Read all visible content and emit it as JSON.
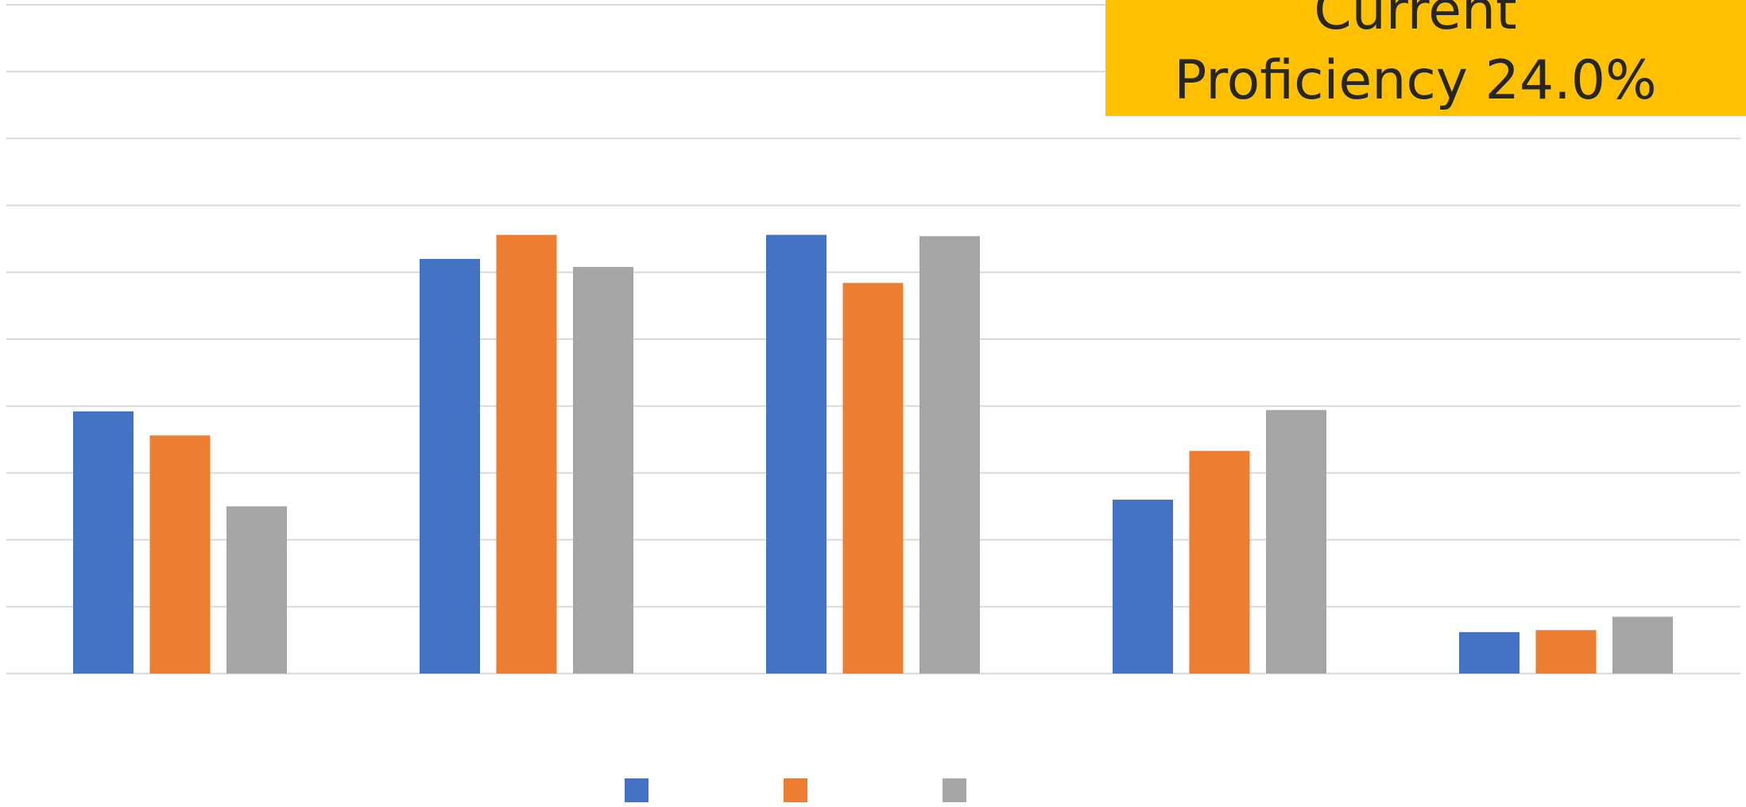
{
  "callout": {
    "line1": "Current",
    "line2": "Proficiency 24.0%"
  },
  "colors": {
    "series_1": "#4472c4",
    "series_2": "#ed7d31",
    "series_3": "#a5a5a5",
    "gridline": "#d9d9d9",
    "callout_bg": "#ffc000"
  },
  "chart_data": {
    "type": "bar",
    "grid": true,
    "ylim": [
      0,
      10
    ],
    "categories": [
      "",
      "",
      "",
      "",
      ""
    ],
    "series": [
      {
        "values": [
          3.92,
          6.2,
          6.56,
          2.6,
          0.62
        ]
      },
      {
        "values": [
          3.56,
          6.56,
          5.84,
          3.33,
          0.65
        ]
      },
      {
        "values": [
          2.5,
          6.08,
          6.54,
          3.94,
          0.85
        ]
      }
    ],
    "legend": "bottom"
  }
}
